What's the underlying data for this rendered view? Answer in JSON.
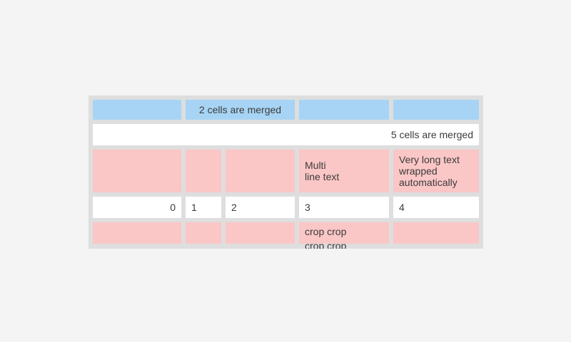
{
  "page": {
    "background_color": "#f4f4f4"
  },
  "table": {
    "colors": {
      "frame": "#dedede",
      "blue": "#a7d4f4",
      "pink": "#fbc6c6",
      "white": "#ffffff",
      "text": "#3b3b3b",
      "page_bg": "#f4f4f4"
    },
    "rows": [
      {
        "cells": [
          {
            "text": ""
          },
          {
            "text": "2 cells are merged"
          },
          {
            "text": ""
          },
          {
            "text": ""
          }
        ]
      },
      {
        "cells": [
          {
            "text": "5 cells are merged"
          }
        ]
      },
      {
        "cells": [
          {
            "text": ""
          },
          {
            "text": ""
          },
          {
            "text": ""
          },
          {
            "text": "Multi\nline text"
          },
          {
            "text": "Very long text wrapped automatically"
          }
        ]
      },
      {
        "cells": [
          {
            "text": "0"
          },
          {
            "text": "1"
          },
          {
            "text": "2"
          },
          {
            "text": "3"
          },
          {
            "text": "4"
          }
        ]
      },
      {
        "cells": [
          {
            "text": ""
          },
          {
            "text": ""
          },
          {
            "text": ""
          },
          {
            "text": "crop crop crop crop"
          },
          {
            "text": ""
          }
        ]
      }
    ]
  }
}
